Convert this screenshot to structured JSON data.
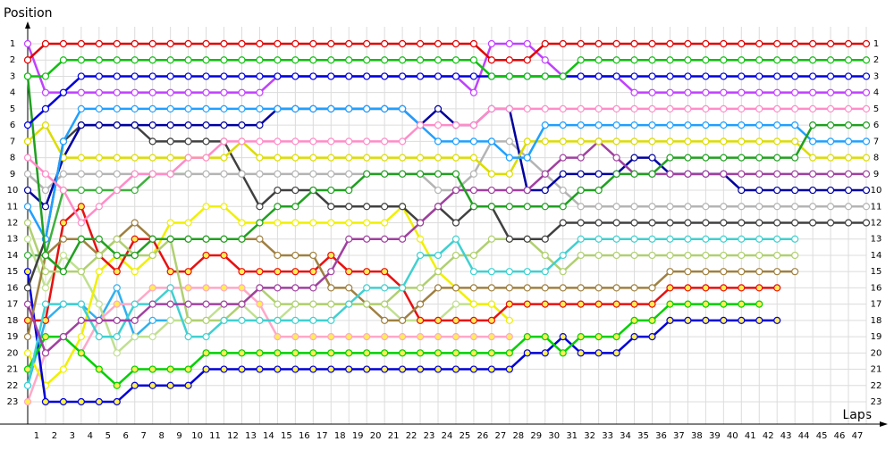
{
  "chart_data": {
    "type": "line",
    "y_label": "Position",
    "x_label": "Laps",
    "xlim": [
      0,
      47
    ],
    "ylim": [
      1,
      23
    ],
    "grid": true,
    "xticks": [
      1,
      2,
      3,
      4,
      5,
      6,
      7,
      8,
      9,
      10,
      11,
      12,
      13,
      14,
      15,
      16,
      17,
      18,
      19,
      20,
      21,
      22,
      23,
      24,
      25,
      26,
      27,
      28,
      29,
      30,
      31,
      32,
      33,
      34,
      35,
      36,
      37,
      38,
      39,
      40,
      41,
      42,
      43,
      44,
      45,
      46,
      47
    ],
    "yticks": [
      1,
      2,
      3,
      4,
      5,
      6,
      7,
      8,
      9,
      10,
      11,
      12,
      13,
      14,
      15,
      16,
      17,
      18,
      19,
      20,
      21,
      22,
      23
    ],
    "x": [
      0,
      1,
      2,
      3,
      4,
      5,
      6,
      7,
      8,
      9,
      10,
      11,
      12,
      13,
      14,
      15,
      16,
      17,
      18,
      19,
      20,
      21,
      22,
      23,
      24,
      25,
      26,
      27,
      28,
      29,
      30,
      31,
      32,
      33,
      34,
      35,
      36,
      37,
      38,
      39,
      40,
      41,
      42,
      43,
      44,
      45,
      46,
      47
    ],
    "series": [
      {
        "color": "#e00000",
        "marker_fill": "#ffffff",
        "values": [
          2,
          1,
          1,
          1,
          1,
          1,
          1,
          1,
          1,
          1,
          1,
          1,
          1,
          1,
          1,
          1,
          1,
          1,
          1,
          1,
          1,
          1,
          1,
          1,
          1,
          1,
          2,
          2,
          2,
          1,
          1,
          1,
          1,
          1,
          1,
          1,
          1,
          1,
          1,
          1,
          1,
          1,
          1,
          1,
          1,
          1,
          1,
          1
        ]
      },
      {
        "color": "#10c010",
        "marker_fill": "#ffffff",
        "values": [
          3,
          3,
          2,
          2,
          2,
          2,
          2,
          2,
          2,
          2,
          2,
          2,
          2,
          2,
          2,
          2,
          2,
          2,
          2,
          2,
          2,
          2,
          2,
          2,
          2,
          2,
          3,
          3,
          3,
          3,
          3,
          2,
          2,
          2,
          2,
          2,
          2,
          2,
          2,
          2,
          2,
          2,
          2,
          2,
          2,
          2,
          2,
          2
        ]
      },
      {
        "color": "#0000e0",
        "marker_fill": "#ffffff",
        "values": [
          6,
          5,
          4,
          3,
          3,
          3,
          3,
          3,
          3,
          3,
          3,
          3,
          3,
          3,
          3,
          3,
          3,
          3,
          3,
          3,
          3,
          3,
          3,
          3,
          3,
          3,
          3,
          3,
          3,
          3,
          3,
          3,
          3,
          3,
          3,
          3,
          3,
          3,
          3,
          3,
          3,
          3,
          3,
          3,
          3,
          3,
          3,
          3
        ]
      },
      {
        "color": "#c040ff",
        "marker_fill": "#ffffff",
        "values": [
          1,
          4,
          4,
          4,
          4,
          4,
          4,
          4,
          4,
          4,
          4,
          4,
          4,
          4,
          3,
          3,
          3,
          3,
          3,
          3,
          3,
          3,
          3,
          3,
          3,
          4,
          1,
          1,
          1,
          2,
          3,
          3,
          3,
          3,
          4,
          4,
          4,
          4,
          4,
          4,
          4,
          4,
          4,
          4,
          4,
          4,
          4,
          4
        ]
      },
      {
        "color": "#ff8cc8",
        "marker_fill": "#ffffff",
        "values": [
          8,
          9,
          10,
          12,
          11,
          10,
          9,
          9,
          9,
          8,
          8,
          7,
          7,
          7,
          7,
          7,
          7,
          7,
          7,
          7,
          7,
          7,
          6,
          6,
          6,
          6,
          5,
          5,
          5,
          5,
          5,
          5,
          5,
          5,
          5,
          5,
          5,
          5,
          5,
          5,
          5,
          5,
          5,
          5,
          5,
          5,
          5,
          5
        ]
      },
      {
        "color": "#20a020",
        "marker_fill": "#ffffff",
        "values": [
          3,
          14,
          15,
          13,
          13,
          14,
          14,
          13,
          13,
          13,
          13,
          13,
          13,
          12,
          11,
          11,
          10,
          10,
          10,
          9,
          9,
          9,
          9,
          9,
          9,
          11,
          11,
          11,
          11,
          11,
          11,
          10,
          10,
          9,
          9,
          9,
          8,
          8,
          8,
          8,
          8,
          8,
          8,
          8,
          6,
          6,
          6,
          6
        ]
      },
      {
        "color": "#20a0ff",
        "marker_fill": "#ffffff",
        "values": [
          11,
          13,
          7,
          5,
          5,
          5,
          5,
          5,
          5,
          5,
          5,
          5,
          5,
          5,
          5,
          5,
          5,
          5,
          5,
          5,
          5,
          5,
          6,
          7,
          7,
          7,
          7,
          8,
          8,
          6,
          6,
          6,
          6,
          6,
          6,
          6,
          6,
          6,
          6,
          6,
          6,
          6,
          6,
          6,
          7,
          7,
          7,
          7
        ]
      },
      {
        "color": "#dcdc00",
        "marker_fill": "#ffffff",
        "values": [
          7,
          6,
          8,
          8,
          8,
          8,
          8,
          8,
          8,
          8,
          8,
          8,
          7,
          8,
          8,
          8,
          8,
          8,
          8,
          8,
          8,
          8,
          8,
          8,
          8,
          8,
          9,
          9,
          7,
          7,
          7,
          7,
          7,
          7,
          7,
          7,
          7,
          7,
          7,
          7,
          7,
          7,
          7,
          7,
          8,
          8,
          8,
          8
        ]
      },
      {
        "color": "#a040a0",
        "marker_fill": "#ffffff",
        "values": [
          17,
          20,
          19,
          18,
          18,
          18,
          18,
          17,
          17,
          17,
          17,
          17,
          17,
          16,
          16,
          16,
          16,
          15,
          13,
          13,
          13,
          13,
          12,
          11,
          10,
          10,
          10,
          10,
          10,
          9,
          8,
          8,
          7,
          8,
          9,
          9,
          9,
          9,
          9,
          9,
          9,
          9,
          9,
          9,
          9,
          9,
          9,
          9
        ]
      },
      {
        "color": "#0000a0",
        "marker_fill": "#ffffff",
        "values": [
          10,
          11,
          8,
          6,
          6,
          6,
          6,
          6,
          6,
          6,
          6,
          6,
          6,
          6,
          5,
          5,
          5,
          5,
          5,
          5,
          5,
          5,
          6,
          5,
          6,
          6,
          5,
          5,
          10,
          10,
          9,
          9,
          9,
          9,
          8,
          8,
          9,
          9,
          9,
          9,
          10,
          10,
          10,
          10,
          10,
          10,
          10,
          10
        ]
      },
      {
        "color": "#b4b4b4",
        "marker_fill": "#ffffff",
        "values": [
          9,
          10,
          9,
          9,
          9,
          9,
          9,
          9,
          9,
          9,
          9,
          9,
          9,
          9,
          9,
          9,
          9,
          9,
          9,
          9,
          9,
          9,
          9,
          10,
          10,
          9,
          7,
          7,
          8,
          9,
          10,
          11,
          11,
          11,
          11,
          11,
          11,
          11,
          11,
          11,
          11,
          11,
          11,
          11,
          11,
          11,
          11,
          11
        ]
      },
      {
        "color": "#404040",
        "marker_fill": "#ffffff",
        "values": [
          16,
          13,
          7,
          6,
          6,
          6,
          6,
          7,
          7,
          7,
          7,
          7,
          9,
          11,
          10,
          10,
          10,
          11,
          11,
          11,
          11,
          11,
          12,
          11,
          12,
          11,
          11,
          13,
          13,
          13,
          12,
          12,
          12,
          12,
          12,
          12,
          12,
          12,
          12,
          12,
          12,
          12,
          12,
          12,
          12,
          12,
          12,
          12
        ]
      },
      {
        "color": "#40d0d0",
        "marker_fill": "#ffffff",
        "values": [
          22,
          17,
          17,
          17,
          19,
          19,
          17,
          17,
          16,
          19,
          19,
          18,
          18,
          18,
          18,
          18,
          18,
          18,
          17,
          16,
          16,
          16,
          14,
          14,
          13,
          15,
          15,
          15,
          15,
          15,
          14,
          13,
          13,
          13,
          13,
          13,
          13,
          13,
          13,
          13,
          13,
          13,
          13,
          13,
          null,
          null,
          null,
          null
        ]
      },
      {
        "color": "#b0d070",
        "marker_fill": "#ffffff",
        "values": [
          12,
          15,
          15,
          15,
          14,
          13,
          14,
          14,
          13,
          18,
          18,
          18,
          17,
          16,
          17,
          17,
          17,
          17,
          17,
          17,
          17,
          16,
          16,
          15,
          14,
          14,
          13,
          13,
          13,
          14,
          15,
          14,
          14,
          14,
          14,
          14,
          14,
          14,
          14,
          14,
          14,
          14,
          14,
          14,
          null,
          null,
          null,
          null
        ]
      },
      {
        "color": "#a08040",
        "marker_fill": "#ffffff",
        "values": [
          19,
          14,
          13,
          13,
          14,
          13,
          12,
          13,
          13,
          13,
          13,
          13,
          13,
          13,
          14,
          14,
          14,
          16,
          16,
          17,
          18,
          18,
          17,
          16,
          16,
          16,
          16,
          16,
          16,
          16,
          16,
          16,
          16,
          16,
          16,
          16,
          15,
          15,
          15,
          15,
          15,
          15,
          15,
          15,
          null,
          null,
          null,
          null
        ]
      },
      {
        "color": "#e81010",
        "marker_fill": "#ffee55",
        "values": [
          18,
          18,
          12,
          11,
          14,
          15,
          13,
          13,
          15,
          15,
          14,
          14,
          15,
          15,
          15,
          15,
          15,
          14,
          15,
          15,
          15,
          16,
          18,
          18,
          18,
          18,
          18,
          17,
          17,
          17,
          17,
          17,
          17,
          17,
          17,
          17,
          16,
          16,
          16,
          16,
          16,
          16,
          16,
          null,
          null,
          null,
          null,
          null
        ]
      },
      {
        "color": "#00d000",
        "marker_fill": "#ffee55",
        "values": [
          21,
          19,
          19,
          20,
          21,
          22,
          21,
          21,
          21,
          21,
          20,
          20,
          20,
          20,
          20,
          20,
          20,
          20,
          20,
          20,
          20,
          20,
          20,
          20,
          20,
          20,
          20,
          20,
          19,
          19,
          20,
          19,
          19,
          19,
          18,
          18,
          17,
          17,
          17,
          17,
          17,
          17,
          null,
          null,
          null,
          null,
          null,
          null
        ]
      },
      {
        "color": "#0000d8",
        "marker_fill": "#ffee55",
        "values": [
          15,
          23,
          23,
          23,
          23,
          23,
          22,
          22,
          22,
          22,
          21,
          21,
          21,
          21,
          21,
          21,
          21,
          21,
          21,
          21,
          21,
          21,
          21,
          21,
          21,
          21,
          21,
          21,
          20,
          20,
          19,
          20,
          20,
          20,
          19,
          19,
          18,
          18,
          18,
          18,
          18,
          18,
          18,
          null,
          null,
          null,
          null,
          null
        ]
      },
      {
        "color": "#f0f000",
        "marker_fill": "#ffffff",
        "values": [
          20,
          22,
          21,
          19,
          15,
          14,
          15,
          14,
          12,
          12,
          11,
          11,
          12,
          12,
          12,
          12,
          12,
          12,
          12,
          12,
          12,
          11,
          13,
          15,
          16,
          17,
          17,
          18,
          null,
          null,
          null,
          null,
          null,
          null,
          null,
          null,
          null,
          null,
          null,
          null,
          null,
          null,
          null,
          null,
          null,
          null,
          null,
          null
        ]
      },
      {
        "color": "#ffa8c8",
        "marker_fill": "#ffee55",
        "values": [
          23,
          20,
          19,
          20,
          18,
          17,
          17,
          16,
          16,
          16,
          16,
          16,
          16,
          17,
          19,
          19,
          19,
          19,
          19,
          19,
          19,
          19,
          19,
          19,
          19,
          19,
          19,
          19,
          null,
          null,
          null,
          null,
          null,
          null,
          null,
          null,
          null,
          null,
          null,
          null,
          null,
          null,
          null,
          null,
          null,
          null,
          null,
          null
        ]
      },
      {
        "color": "#c0e090",
        "marker_fill": "#ffffff",
        "values": [
          13,
          16,
          14,
          15,
          17,
          20,
          19,
          19,
          18,
          18,
          18,
          17,
          17,
          18,
          18,
          17,
          17,
          17,
          17,
          17,
          17,
          18,
          18,
          18,
          17,
          17,
          17,
          null,
          null,
          null,
          null,
          null,
          null,
          null,
          null,
          null,
          null,
          null,
          null,
          null,
          null,
          null,
          null,
          null,
          null,
          null,
          null,
          null
        ]
      },
      {
        "color": "#30b0f0",
        "marker_fill": "#ffffff",
        "values": [
          22,
          18,
          17,
          17,
          18,
          16,
          19,
          18,
          18,
          null,
          null,
          null,
          null,
          null,
          null,
          null,
          null,
          null,
          null,
          null,
          null,
          null,
          null,
          null,
          null,
          null,
          null,
          null,
          null,
          null,
          null,
          null,
          null,
          null,
          null,
          null,
          null,
          null,
          null,
          null,
          null,
          null,
          null,
          null,
          null,
          null,
          null,
          null
        ]
      },
      {
        "color": "#40b040",
        "marker_fill": "#ffffff",
        "values": [
          14,
          14,
          10,
          10,
          10,
          10,
          10,
          9,
          9,
          9,
          null,
          null,
          null,
          null,
          null,
          null,
          null,
          null,
          null,
          null,
          null,
          null,
          null,
          null,
          null,
          null,
          null,
          null,
          null,
          null,
          null,
          null,
          null,
          null,
          null,
          null,
          null,
          null,
          null,
          null,
          null,
          null,
          null,
          null,
          null,
          null,
          null,
          null
        ]
      }
    ]
  }
}
